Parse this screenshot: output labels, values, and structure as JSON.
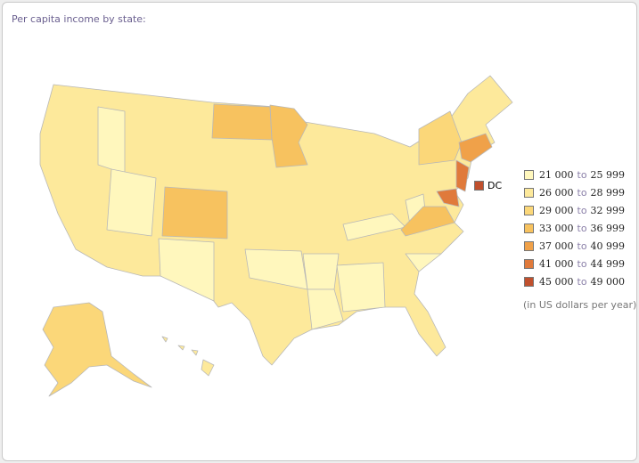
{
  "title": "Per capita income by state:",
  "dc": {
    "label": "DC",
    "color": "#c0502d"
  },
  "legend": {
    "connector": "to",
    "note": "(in US dollars per year)",
    "items": [
      {
        "from": "21 000",
        "to": "25 999",
        "color": "#fff7bd"
      },
      {
        "from": "26 000",
        "to": "28 999",
        "color": "#fde99b"
      },
      {
        "from": "29 000",
        "to": "32 999",
        "color": "#fbd779"
      },
      {
        "from": "33 000",
        "to": "36 999",
        "color": "#f7c25f"
      },
      {
        "from": "37 000",
        "to": "40 999",
        "color": "#f0a149"
      },
      {
        "from": "41 000",
        "to": "44 999",
        "color": "#e07a3b"
      },
      {
        "from": "45 000",
        "to": "49 000",
        "color": "#c0502d"
      }
    ]
  }
}
